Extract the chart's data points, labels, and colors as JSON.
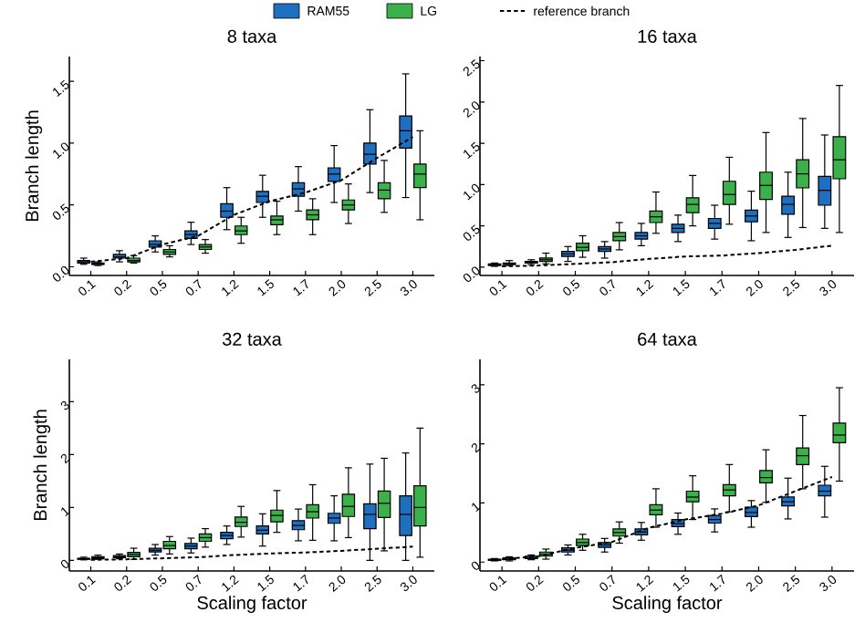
{
  "chart_data": [
    {
      "type": "box",
      "title": "8 taxa",
      "ylabel": "Branch length",
      "legend": "top",
      "categories": [
        "0.1",
        "0.2",
        "0.5",
        "0.7",
        "1.2",
        "1.5",
        "1.7",
        "2.0",
        "2.5",
        "3.0"
      ],
      "ylim": [
        -0.07,
        1.7
      ],
      "yticks": [
        {
          "value": 0,
          "label": "0.0"
        },
        0.5,
        {
          "value": 1,
          "label": "1.0"
        },
        1.5
      ],
      "series": [
        {
          "name": "RAM55",
          "color": "#1f6fc0",
          "boxes": [
            {
              "low": 0.02,
              "q1": 0.03,
              "median": 0.04,
              "q3": 0.05,
              "high": 0.07
            },
            {
              "low": 0.04,
              "q1": 0.07,
              "median": 0.08,
              "q3": 0.1,
              "high": 0.13
            },
            {
              "low": 0.12,
              "q1": 0.16,
              "median": 0.18,
              "q3": 0.21,
              "high": 0.25
            },
            {
              "low": 0.18,
              "q1": 0.23,
              "median": 0.26,
              "q3": 0.29,
              "high": 0.36
            },
            {
              "low": 0.3,
              "q1": 0.4,
              "median": 0.45,
              "q3": 0.51,
              "high": 0.64
            },
            {
              "low": 0.4,
              "q1": 0.52,
              "median": 0.57,
              "q3": 0.61,
              "high": 0.74
            },
            {
              "low": 0.45,
              "q1": 0.57,
              "median": 0.63,
              "q3": 0.68,
              "high": 0.81
            },
            {
              "low": 0.52,
              "q1": 0.69,
              "median": 0.75,
              "q3": 0.8,
              "high": 0.98
            },
            {
              "low": 0.6,
              "q1": 0.83,
              "median": 0.91,
              "q3": 1.0,
              "high": 1.27
            },
            {
              "low": 0.56,
              "q1": 0.96,
              "median": 1.1,
              "q3": 1.22,
              "high": 1.56
            }
          ]
        },
        {
          "name": "LG",
          "color": "#3cb04a",
          "boxes": [
            {
              "low": 0.01,
              "q1": 0.02,
              "median": 0.02,
              "q3": 0.03,
              "high": 0.04
            },
            {
              "low": 0.03,
              "q1": 0.04,
              "median": 0.05,
              "q3": 0.07,
              "high": 0.09
            },
            {
              "low": 0.08,
              "q1": 0.1,
              "median": 0.12,
              "q3": 0.14,
              "high": 0.17
            },
            {
              "low": 0.11,
              "q1": 0.14,
              "median": 0.16,
              "q3": 0.18,
              "high": 0.22
            },
            {
              "low": 0.19,
              "q1": 0.26,
              "median": 0.29,
              "q3": 0.33,
              "high": 0.4
            },
            {
              "low": 0.26,
              "q1": 0.34,
              "median": 0.38,
              "q3": 0.41,
              "high": 0.53
            },
            {
              "low": 0.26,
              "q1": 0.38,
              "median": 0.42,
              "q3": 0.46,
              "high": 0.55
            },
            {
              "low": 0.35,
              "q1": 0.46,
              "median": 0.5,
              "q3": 0.54,
              "high": 0.67
            },
            {
              "low": 0.44,
              "q1": 0.55,
              "median": 0.62,
              "q3": 0.68,
              "high": 0.86
            },
            {
              "low": 0.38,
              "q1": 0.64,
              "median": 0.75,
              "q3": 0.83,
              "high": 1.1
            }
          ]
        },
        {
          "name": "reference branch",
          "type": "line",
          "line_style": "dashed",
          "color": "#000000",
          "values": [
            0.04,
            0.07,
            0.18,
            0.25,
            0.42,
            0.53,
            0.6,
            0.7,
            0.88,
            1.05
          ]
        }
      ]
    },
    {
      "type": "box",
      "title": "16 taxa",
      "categories": [
        "0.1",
        "0.2",
        "0.5",
        "0.7",
        "1.2",
        "1.5",
        "1.7",
        "2.0",
        "2.5",
        "3.0"
      ],
      "ylim": [
        -0.1,
        2.55
      ],
      "yticks": [
        {
          "value": 0,
          "label": "0.0"
        },
        0.5,
        {
          "value": 1,
          "label": "1.0"
        },
        1.5,
        {
          "value": 2,
          "label": "2.0"
        },
        2.5
      ],
      "series": [
        {
          "color": "#1f6fc0",
          "boxes": [
            {
              "low": 0.01,
              "q1": 0.02,
              "median": 0.03,
              "q3": 0.04,
              "high": 0.05
            },
            {
              "low": 0.03,
              "q1": 0.05,
              "median": 0.06,
              "q3": 0.07,
              "high": 0.09
            },
            {
              "low": 0.07,
              "q1": 0.13,
              "median": 0.16,
              "q3": 0.19,
              "high": 0.25
            },
            {
              "low": 0.11,
              "q1": 0.19,
              "median": 0.22,
              "q3": 0.25,
              "high": 0.31
            },
            {
              "low": 0.26,
              "q1": 0.34,
              "median": 0.38,
              "q3": 0.42,
              "high": 0.53
            },
            {
              "low": 0.31,
              "q1": 0.42,
              "median": 0.47,
              "q3": 0.52,
              "high": 0.63
            },
            {
              "low": 0.34,
              "q1": 0.47,
              "median": 0.53,
              "q3": 0.59,
              "high": 0.75
            },
            {
              "low": 0.32,
              "q1": 0.55,
              "median": 0.62,
              "q3": 0.69,
              "high": 0.92
            },
            {
              "low": 0.36,
              "q1": 0.64,
              "median": 0.76,
              "q3": 0.86,
              "high": 1.15
            },
            {
              "low": 0.47,
              "q1": 0.75,
              "median": 0.93,
              "q3": 1.1,
              "high": 1.6
            }
          ]
        },
        {
          "color": "#3cb04a",
          "boxes": [
            {
              "low": 0.02,
              "q1": 0.03,
              "median": 0.04,
              "q3": 0.05,
              "high": 0.08
            },
            {
              "low": 0.04,
              "q1": 0.07,
              "median": 0.09,
              "q3": 0.11,
              "high": 0.17
            },
            {
              "low": 0.12,
              "q1": 0.2,
              "median": 0.24,
              "q3": 0.29,
              "high": 0.38
            },
            {
              "low": 0.21,
              "q1": 0.32,
              "median": 0.37,
              "q3": 0.42,
              "high": 0.54
            },
            {
              "low": 0.41,
              "q1": 0.54,
              "median": 0.61,
              "q3": 0.68,
              "high": 0.91
            },
            {
              "low": 0.5,
              "q1": 0.66,
              "median": 0.76,
              "q3": 0.84,
              "high": 1.11
            },
            {
              "low": 0.52,
              "q1": 0.76,
              "median": 0.88,
              "q3": 1.04,
              "high": 1.33
            },
            {
              "low": 0.42,
              "q1": 0.82,
              "median": 0.99,
              "q3": 1.15,
              "high": 1.63
            },
            {
              "low": 0.48,
              "q1": 0.96,
              "median": 1.13,
              "q3": 1.3,
              "high": 1.8
            },
            {
              "low": 0.42,
              "q1": 1.07,
              "median": 1.3,
              "q3": 1.58,
              "high": 2.2
            }
          ]
        },
        {
          "type": "line",
          "line_style": "dashed",
          "color": "#000000",
          "values": [
            0.01,
            0.02,
            0.04,
            0.06,
            0.1,
            0.13,
            0.14,
            0.17,
            0.21,
            0.26
          ]
        }
      ]
    },
    {
      "type": "box",
      "title": "32 taxa",
      "xlabel": "Scaling factor",
      "ylabel": "Branch length",
      "categories": [
        "0.1",
        "0.2",
        "0.5",
        "0.7",
        "1.2",
        "1.5",
        "1.7",
        "2.0",
        "2.5",
        "3.0"
      ],
      "ylim": [
        -0.2,
        3.8
      ],
      "yticks": [
        0,
        1,
        2,
        3
      ],
      "series": [
        {
          "color": "#1f6fc0",
          "boxes": [
            {
              "low": 0.01,
              "q1": 0.02,
              "median": 0.03,
              "q3": 0.04,
              "high": 0.06
            },
            {
              "low": 0.03,
              "q1": 0.05,
              "median": 0.07,
              "q3": 0.09,
              "high": 0.12
            },
            {
              "low": 0.1,
              "q1": 0.16,
              "median": 0.19,
              "q3": 0.23,
              "high": 0.3
            },
            {
              "low": 0.14,
              "q1": 0.22,
              "median": 0.27,
              "q3": 0.32,
              "high": 0.42
            },
            {
              "low": 0.3,
              "q1": 0.41,
              "median": 0.47,
              "q3": 0.53,
              "high": 0.65
            },
            {
              "low": 0.27,
              "q1": 0.5,
              "median": 0.57,
              "q3": 0.65,
              "high": 0.88
            },
            {
              "low": 0.37,
              "q1": 0.58,
              "median": 0.66,
              "q3": 0.75,
              "high": 0.97
            },
            {
              "low": 0.37,
              "q1": 0.7,
              "median": 0.8,
              "q3": 0.89,
              "high": 1.22
            },
            {
              "low": 0.0,
              "q1": 0.6,
              "median": 0.87,
              "q3": 1.07,
              "high": 1.82
            },
            {
              "low": 0.0,
              "q1": 0.47,
              "median": 0.87,
              "q3": 1.22,
              "high": 2.03
            }
          ]
        },
        {
          "color": "#3cb04a",
          "boxes": [
            {
              "low": 0.02,
              "q1": 0.03,
              "median": 0.05,
              "q3": 0.07,
              "high": 0.1
            },
            {
              "low": 0.02,
              "q1": 0.07,
              "median": 0.11,
              "q3": 0.15,
              "high": 0.23
            },
            {
              "low": 0.12,
              "q1": 0.22,
              "median": 0.28,
              "q3": 0.36,
              "high": 0.45
            },
            {
              "low": 0.25,
              "q1": 0.36,
              "median": 0.43,
              "q3": 0.5,
              "high": 0.6
            },
            {
              "low": 0.44,
              "q1": 0.64,
              "median": 0.72,
              "q3": 0.82,
              "high": 1.02
            },
            {
              "low": 0.53,
              "q1": 0.73,
              "median": 0.85,
              "q3": 0.95,
              "high": 1.32
            },
            {
              "low": 0.38,
              "q1": 0.8,
              "median": 0.92,
              "q3": 1.05,
              "high": 1.43
            },
            {
              "low": 0.43,
              "q1": 0.83,
              "median": 1.02,
              "q3": 1.25,
              "high": 1.75
            },
            {
              "low": 0.18,
              "q1": 0.81,
              "median": 1.08,
              "q3": 1.31,
              "high": 1.93
            },
            {
              "low": 0.06,
              "q1": 0.65,
              "median": 1.0,
              "q3": 1.41,
              "high": 2.5
            }
          ]
        },
        {
          "type": "line",
          "line_style": "dashed",
          "color": "#000000",
          "values": [
            0.01,
            0.02,
            0.04,
            0.06,
            0.1,
            0.13,
            0.15,
            0.18,
            0.22,
            0.26
          ]
        }
      ]
    },
    {
      "type": "box",
      "title": "64 taxa",
      "xlabel": "Scaling factor",
      "categories": [
        "0.1",
        "0.2",
        "0.5",
        "0.7",
        "1.2",
        "1.5",
        "1.7",
        "2.0",
        "2.5",
        "3.0"
      ],
      "ylim": [
        -0.15,
        3.43
      ],
      "yticks": [
        0,
        1,
        2,
        3
      ],
      "series": [
        {
          "color": "#1f6fc0",
          "boxes": [
            {
              "low": 0.02,
              "q1": 0.03,
              "median": 0.04,
              "q3": 0.05,
              "high": 0.06
            },
            {
              "low": 0.04,
              "q1": 0.06,
              "median": 0.08,
              "q3": 0.1,
              "high": 0.12
            },
            {
              "low": 0.12,
              "q1": 0.17,
              "median": 0.2,
              "q3": 0.24,
              "high": 0.29
            },
            {
              "low": 0.17,
              "q1": 0.25,
              "median": 0.29,
              "q3": 0.33,
              "high": 0.4
            },
            {
              "low": 0.37,
              "q1": 0.46,
              "median": 0.51,
              "q3": 0.56,
              "high": 0.67
            },
            {
              "low": 0.47,
              "q1": 0.6,
              "median": 0.65,
              "q3": 0.72,
              "high": 0.83
            },
            {
              "low": 0.51,
              "q1": 0.66,
              "median": 0.72,
              "q3": 0.79,
              "high": 0.9
            },
            {
              "low": 0.59,
              "q1": 0.77,
              "median": 0.84,
              "q3": 0.93,
              "high": 1.04
            },
            {
              "low": 0.73,
              "q1": 0.95,
              "median": 1.02,
              "q3": 1.1,
              "high": 1.42
            },
            {
              "low": 0.76,
              "q1": 1.12,
              "median": 1.2,
              "q3": 1.3,
              "high": 1.62
            }
          ]
        },
        {
          "color": "#3cb04a",
          "boxes": [
            {
              "low": 0.02,
              "q1": 0.04,
              "median": 0.05,
              "q3": 0.07,
              "high": 0.09
            },
            {
              "low": 0.05,
              "q1": 0.1,
              "median": 0.13,
              "q3": 0.17,
              "high": 0.22
            },
            {
              "low": 0.2,
              "q1": 0.28,
              "median": 0.33,
              "q3": 0.39,
              "high": 0.47
            },
            {
              "low": 0.32,
              "q1": 0.44,
              "median": 0.5,
              "q3": 0.56,
              "high": 0.68
            },
            {
              "low": 0.59,
              "q1": 0.8,
              "median": 0.88,
              "q3": 0.97,
              "high": 1.24
            },
            {
              "low": 0.72,
              "q1": 1.02,
              "median": 1.1,
              "q3": 1.2,
              "high": 1.46
            },
            {
              "low": 0.85,
              "q1": 1.12,
              "median": 1.22,
              "q3": 1.31,
              "high": 1.65
            },
            {
              "low": 1.01,
              "q1": 1.34,
              "median": 1.43,
              "q3": 1.55,
              "high": 1.9
            },
            {
              "low": 1.24,
              "q1": 1.65,
              "median": 1.8,
              "q3": 1.93,
              "high": 2.48
            },
            {
              "low": 1.37,
              "q1": 2.02,
              "median": 2.15,
              "q3": 2.35,
              "high": 2.95
            }
          ]
        },
        {
          "type": "line",
          "line_style": "dashed",
          "color": "#000000",
          "values": [
            0.05,
            0.1,
            0.24,
            0.34,
            0.58,
            0.72,
            0.82,
            0.96,
            1.2,
            1.44
          ]
        }
      ]
    }
  ]
}
